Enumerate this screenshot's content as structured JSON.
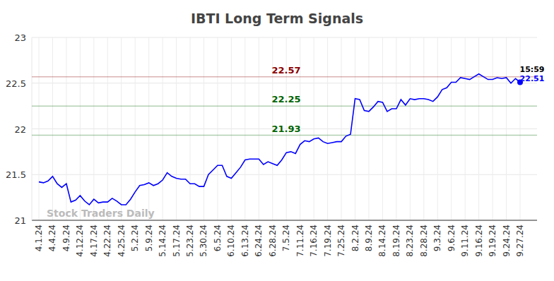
{
  "chart_data": {
    "type": "line",
    "title": "IBTI Long Term Signals",
    "watermark": "Stock Traders Daily",
    "time_label": "15:59",
    "color": "#0000ff",
    "grid": true,
    "ylim": [
      21,
      23
    ],
    "yticks": [
      21,
      21.5,
      22,
      22.5,
      23
    ],
    "annotations": [
      {
        "value": 22.57,
        "label": "22.57",
        "color": "#8b0000"
      },
      {
        "value": 22.25,
        "label": "22.25",
        "color": "#006400"
      },
      {
        "value": 21.93,
        "label": "21.93",
        "color": "#006400"
      }
    ],
    "categories": [
      "4.1.24",
      null,
      null,
      "4.4.24",
      null,
      null,
      "4.9.24",
      null,
      null,
      "4.12.24",
      null,
      null,
      "4.17.24",
      null,
      null,
      "4.22.24",
      null,
      null,
      "4.25.24",
      null,
      null,
      "5.2.24",
      null,
      null,
      "5.9.24",
      null,
      null,
      "5.14.24",
      null,
      null,
      "5.17.24",
      null,
      null,
      "5.23.24",
      null,
      null,
      "5.30.24",
      null,
      null,
      "6.5.24",
      null,
      null,
      "6.10.24",
      null,
      null,
      "6.13.24",
      null,
      null,
      "6.24.24",
      null,
      null,
      "6.28.24",
      null,
      null,
      "7.5.24",
      null,
      null,
      "7.11.24",
      null,
      null,
      "7.16.24",
      null,
      null,
      "7.19.24",
      null,
      null,
      "7.25.24",
      null,
      null,
      "8.2.24",
      null,
      null,
      "8.9.24",
      null,
      null,
      "8.14.24",
      null,
      null,
      "8.19.24",
      null,
      null,
      "8.23.24",
      null,
      null,
      "8.28.24",
      null,
      null,
      "9.3.24",
      null,
      null,
      "9.6.24",
      null,
      null,
      "9.11.24",
      null,
      null,
      "9.16.24",
      null,
      null,
      "9.19.24",
      null,
      null,
      "9.24.24",
      null,
      null,
      "9.27.24"
    ],
    "values": [
      21.42,
      21.41,
      21.43,
      21.48,
      21.4,
      21.36,
      21.4,
      21.2,
      21.22,
      21.27,
      21.21,
      21.17,
      21.23,
      21.19,
      21.2,
      21.2,
      21.24,
      21.21,
      21.17,
      21.17,
      21.23,
      21.31,
      21.38,
      21.39,
      21.41,
      21.38,
      21.4,
      21.44,
      21.52,
      21.48,
      21.46,
      21.45,
      21.45,
      21.4,
      21.4,
      21.37,
      21.37,
      21.5,
      21.55,
      21.6,
      21.6,
      21.48,
      21.46,
      21.52,
      21.58,
      21.66,
      21.67,
      21.67,
      21.67,
      21.61,
      21.64,
      21.62,
      21.6,
      21.66,
      21.74,
      21.75,
      21.73,
      21.83,
      21.87,
      21.86,
      21.89,
      21.9,
      21.86,
      21.84,
      21.85,
      21.86,
      21.86,
      21.92,
      21.94,
      22.33,
      22.32,
      22.2,
      22.19,
      22.24,
      22.3,
      22.29,
      22.19,
      22.22,
      22.22,
      22.32,
      22.26,
      22.33,
      22.32,
      22.33,
      22.33,
      22.32,
      22.3,
      22.35,
      22.43,
      22.45,
      22.51,
      22.51,
      22.56,
      22.55,
      22.54,
      22.57,
      22.6,
      22.57,
      22.54,
      22.54,
      22.56,
      22.55,
      22.56,
      22.5,
      22.55,
      22.51
    ]
  }
}
